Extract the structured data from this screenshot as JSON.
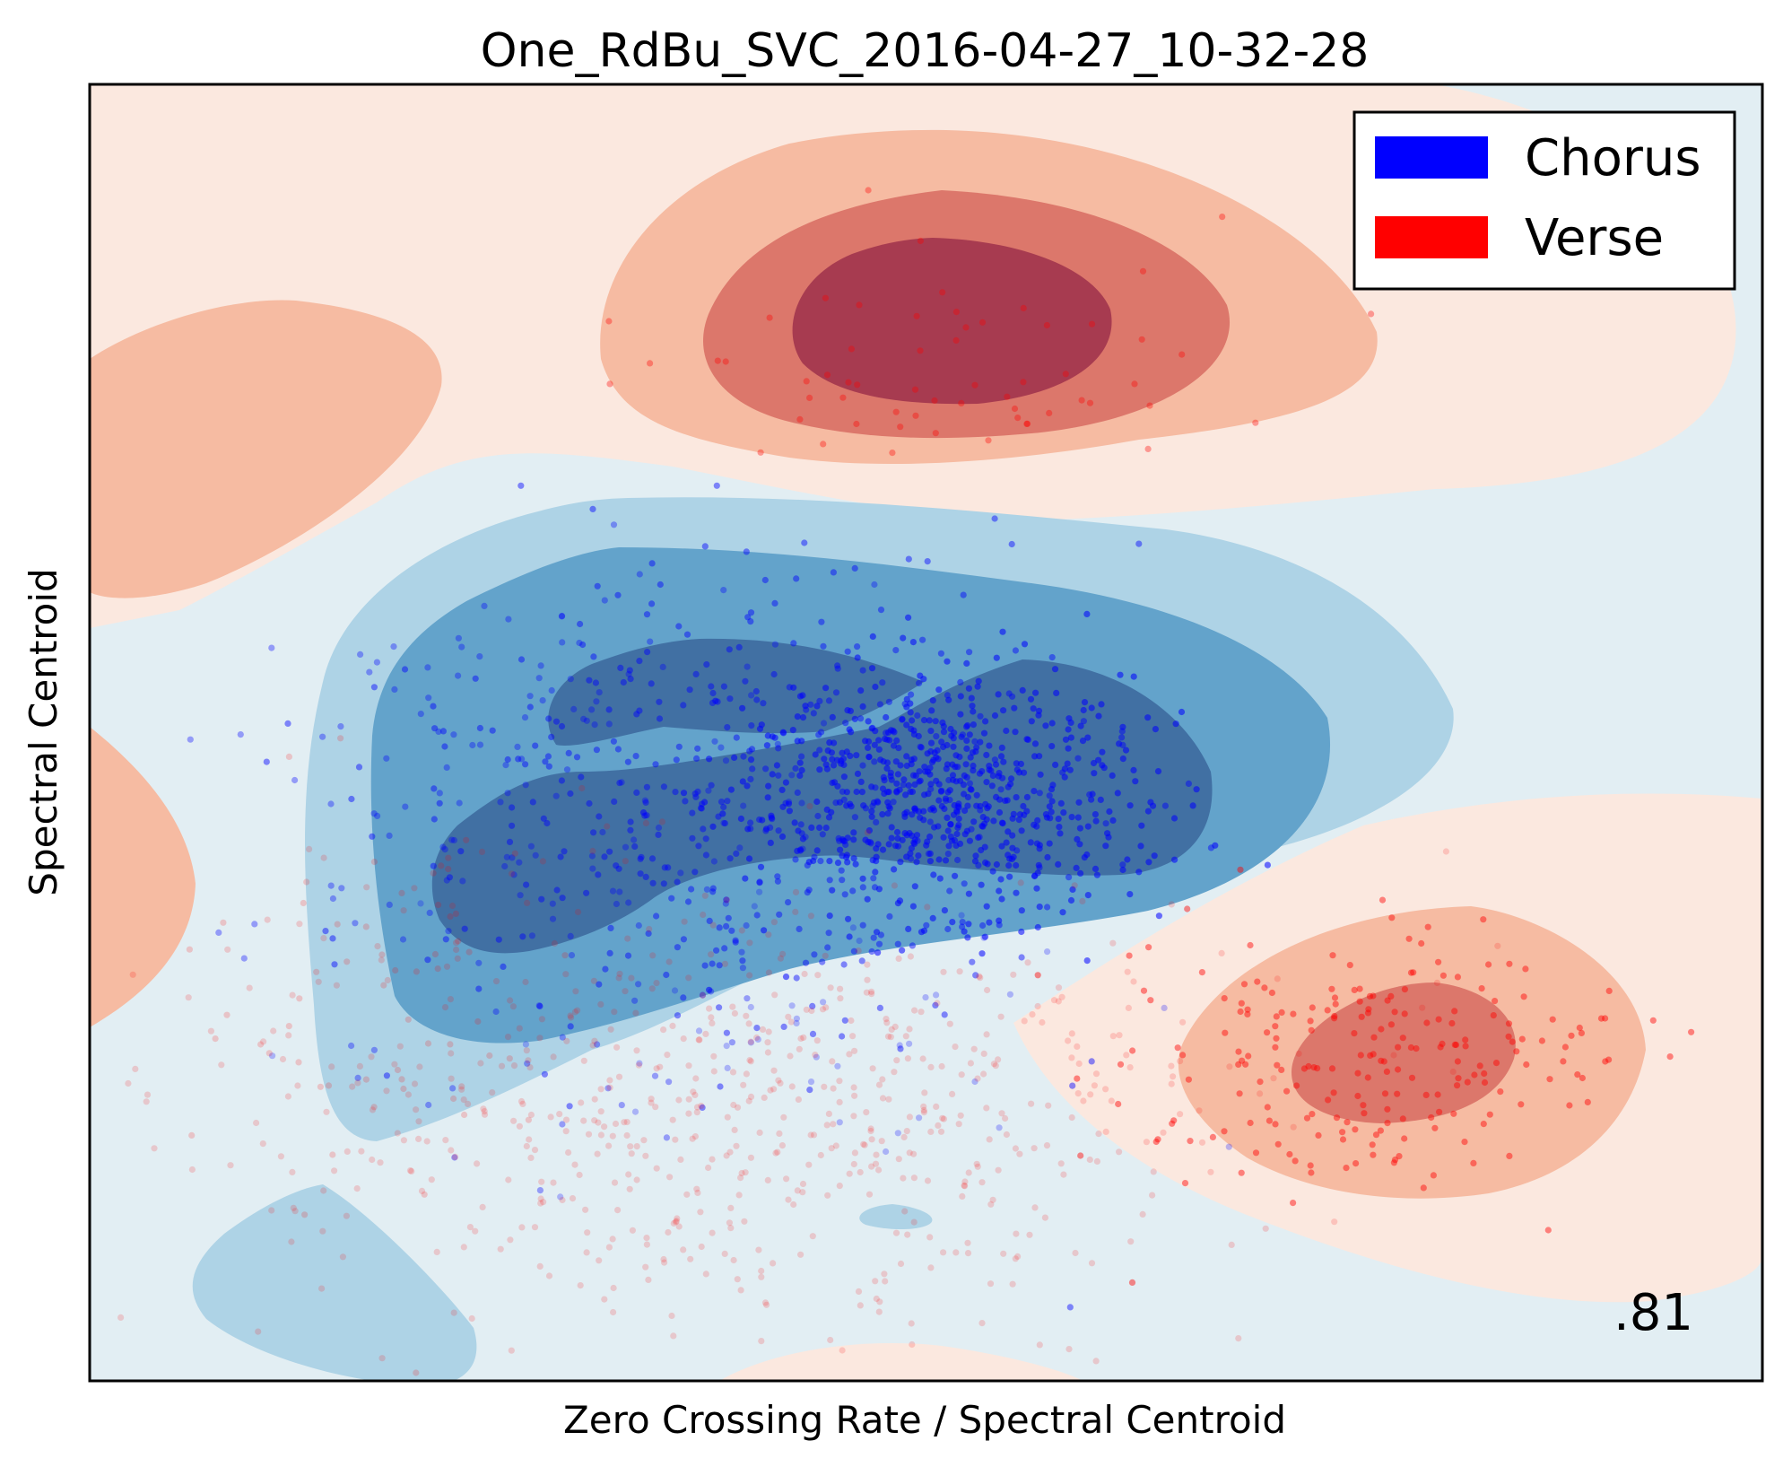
{
  "chart_data": {
    "type": "scatter",
    "title": "One_RdBu_SVC_2016-04-27_10-32-28",
    "xlabel": "Zero Crossing Rate / Spectral Centroid",
    "ylabel": "Spectral Centroid",
    "score": ".81",
    "grid": false,
    "legend_position": "top-right",
    "background": "decision-function contour (RdBu colormap)",
    "series": [
      {
        "name": "Chorus",
        "color": "#0000ff"
      },
      {
        "name": "Verse",
        "color": "#ff0000"
      }
    ],
    "contour_colors": {
      "red_strong": "#a73b50",
      "red_mid": "#dc776b",
      "red_light": "#f6bba2",
      "red_faint": "#fbe8df",
      "blue_faint": "#e2eef3",
      "blue_light": "#aed3e6",
      "blue_mid": "#63a3cb",
      "blue_strong": "#4170a3"
    }
  }
}
